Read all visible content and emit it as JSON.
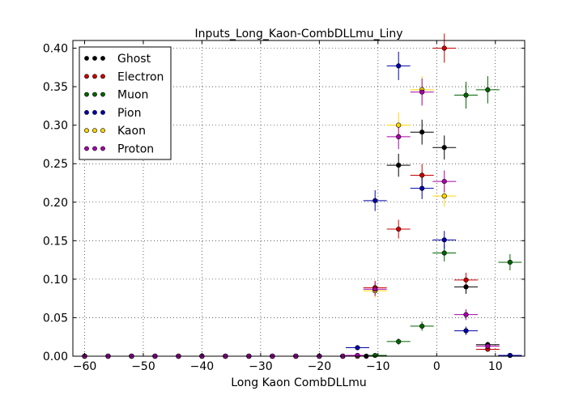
{
  "chart_data": {
    "type": "scatter",
    "title": "Inputs_Long_Kaon-CombDLLmu_Liny",
    "xlabel": "Long Kaon CombDLLmu",
    "ylabel": "",
    "xlim": [
      -62,
      15
    ],
    "ylim": [
      0,
      0.41
    ],
    "xticks": [
      -60,
      -50,
      -40,
      -30,
      -20,
      -10,
      0,
      10
    ],
    "yticks": [
      0.0,
      0.05,
      0.1,
      0.15,
      0.2,
      0.25,
      0.3,
      0.35,
      0.4
    ],
    "xtick_labels": [
      "−60",
      "−50",
      "−40",
      "−30",
      "−20",
      "−10",
      "0",
      "10"
    ],
    "ytick_labels": [
      "0.00",
      "0.05",
      "0.10",
      "0.15",
      "0.20",
      "0.25",
      "0.30",
      "0.35",
      "0.40"
    ],
    "grid": true,
    "legend_position": "top-left",
    "error_bars": true,
    "x_halfwidth": 2,
    "series": [
      {
        "name": "Ghost",
        "color": "#000000",
        "points": [
          [
            -60,
            0
          ],
          [
            -56,
            0
          ],
          [
            -52,
            0
          ],
          [
            -48,
            0
          ],
          [
            -44,
            0
          ],
          [
            -40,
            0
          ],
          [
            -36,
            0
          ],
          [
            -32,
            0
          ],
          [
            -28,
            0
          ],
          [
            -24,
            0
          ],
          [
            -20,
            0
          ],
          [
            -16,
            0
          ],
          [
            -12,
            0
          ],
          [
            -6.5,
            0.248
          ],
          [
            -2.5,
            0.291
          ],
          [
            1.3,
            0.271
          ],
          [
            5,
            0.09
          ],
          [
            8.7,
            0.015
          ],
          [
            12.5,
            0.001
          ]
        ]
      },
      {
        "name": "Electron",
        "color": "#cc0000",
        "points": [
          [
            -60,
            0
          ],
          [
            -56,
            0
          ],
          [
            -52,
            0
          ],
          [
            -48,
            0
          ],
          [
            -44,
            0
          ],
          [
            -40,
            0
          ],
          [
            -36,
            0
          ],
          [
            -32,
            0
          ],
          [
            -28,
            0
          ],
          [
            -24,
            0
          ],
          [
            -20,
            0
          ],
          [
            -16,
            0
          ],
          [
            -13.5,
            0.001
          ],
          [
            -10.5,
            0.089
          ],
          [
            -6.5,
            0.165
          ],
          [
            -2.5,
            0.235
          ],
          [
            1.3,
            0.4
          ],
          [
            5,
            0.099
          ],
          [
            8.7,
            0.009
          ]
        ]
      },
      {
        "name": "Muon",
        "color": "#006400",
        "points": [
          [
            -60,
            0
          ],
          [
            -56,
            0
          ],
          [
            -52,
            0
          ],
          [
            -48,
            0
          ],
          [
            -44,
            0
          ],
          [
            -40,
            0
          ],
          [
            -36,
            0
          ],
          [
            -32,
            0
          ],
          [
            -28,
            0
          ],
          [
            -24,
            0
          ],
          [
            -20,
            0
          ],
          [
            -16,
            0
          ],
          [
            -13.5,
            0
          ],
          [
            -10.5,
            0.001
          ],
          [
            -6.5,
            0.019
          ],
          [
            -2.5,
            0.039
          ],
          [
            1.3,
            0.134
          ],
          [
            5,
            0.339
          ],
          [
            8.7,
            0.346
          ],
          [
            12.5,
            0.122
          ]
        ]
      },
      {
        "name": "Pion",
        "color": "#0000aa",
        "points": [
          [
            -60,
            0
          ],
          [
            -56,
            0
          ],
          [
            -52,
            0
          ],
          [
            -48,
            0
          ],
          [
            -44,
            0
          ],
          [
            -40,
            0
          ],
          [
            -36,
            0
          ],
          [
            -32,
            0
          ],
          [
            -28,
            0
          ],
          [
            -24,
            0
          ],
          [
            -20,
            0
          ],
          [
            -16,
            0
          ],
          [
            -13.5,
            0.011
          ],
          [
            -10.5,
            0.202
          ],
          [
            -6.5,
            0.377
          ],
          [
            -2.5,
            0.218
          ],
          [
            1.3,
            0.151
          ],
          [
            5,
            0.033
          ],
          [
            12.5,
            0.001
          ]
        ]
      },
      {
        "name": "Kaon",
        "color": "#ffd700",
        "points": [
          [
            -60,
            0
          ],
          [
            -56,
            0
          ],
          [
            -52,
            0
          ],
          [
            -48,
            0
          ],
          [
            -44,
            0
          ],
          [
            -40,
            0
          ],
          [
            -36,
            0
          ],
          [
            -32,
            0
          ],
          [
            -28,
            0
          ],
          [
            -24,
            0
          ],
          [
            -20,
            0
          ],
          [
            -16,
            0
          ],
          [
            -13.5,
            0
          ],
          [
            -10.5,
            0.085
          ],
          [
            -6.5,
            0.3
          ],
          [
            -2.5,
            0.346
          ],
          [
            1.3,
            0.208
          ]
        ]
      },
      {
        "name": "Proton",
        "color": "#aa00aa",
        "points": [
          [
            -60,
            0
          ],
          [
            -56,
            0
          ],
          [
            -52,
            0
          ],
          [
            -48,
            0
          ],
          [
            -44,
            0
          ],
          [
            -40,
            0
          ],
          [
            -36,
            0
          ],
          [
            -32,
            0
          ],
          [
            -28,
            0
          ],
          [
            -24,
            0
          ],
          [
            -20,
            0
          ],
          [
            -16,
            0
          ],
          [
            -13.5,
            0.001
          ],
          [
            -10.5,
            0.087
          ],
          [
            -6.5,
            0.285
          ],
          [
            -2.5,
            0.343
          ],
          [
            1.3,
            0.227
          ],
          [
            5,
            0.054
          ],
          [
            8.7,
            0.013
          ]
        ]
      }
    ]
  }
}
